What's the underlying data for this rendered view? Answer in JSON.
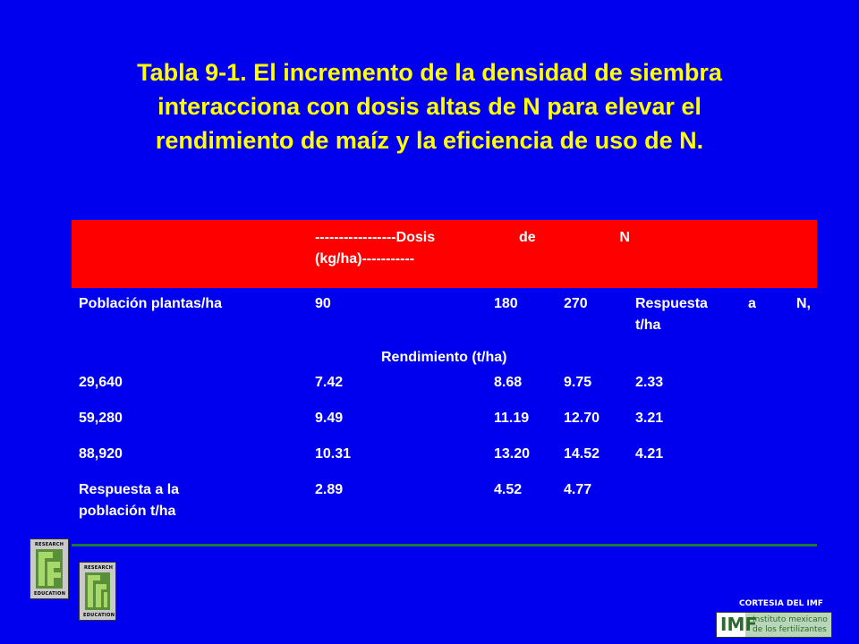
{
  "title": {
    "line1": "Tabla 9-1.  El incremento de la densidad de siembra",
    "line2": "interacciona con dosis altas de N para elevar el",
    "line3": "rendimiento de maíz y la eficiencia de uso de N."
  },
  "table": {
    "dosis_header": {
      "part1": "-----------------Dosis",
      "part2": "de",
      "part3": "N",
      "line2": "(kg/ha)-----------"
    },
    "columns": {
      "poblacion": "Población plantas/ha",
      "d90": "90",
      "d180": "180",
      "d270": "270",
      "respuesta_n": {
        "w1": "Respuesta",
        "w2": "a",
        "w3": "N,",
        "line2": "t/ha"
      }
    },
    "rendimiento_label": "Rendimiento (t/ha)",
    "rows": [
      {
        "poblacion": "29,640",
        "d90": "7.42",
        "d180": "8.68",
        "d270": "9.75",
        "respuesta": "2.33"
      },
      {
        "poblacion": "59,280",
        "d90": "9.49",
        "d180": "11.19",
        "d270": "12.70",
        "respuesta": "3.21"
      },
      {
        "poblacion": "88,920",
        "d90": "10.31",
        "d180": "13.20",
        "d270": "14.52",
        "respuesta": "4.21"
      }
    ],
    "last_row": {
      "label_line1": "Respuesta a la",
      "label_line2": "población t/ha",
      "d90": "2.89",
      "d180": "4.52",
      "d270": "4.77"
    }
  },
  "logos": {
    "ppic": {
      "top_text": "RESEARCH",
      "bottom_text": "EDUCATION"
    },
    "ppi": {
      "top_text": "RESEARCH",
      "bottom_text": "EDUCATION"
    }
  },
  "footer": {
    "cortesia": "CORTESIA DEL IMF",
    "imf_mark": "IMF",
    "imf_line1": "Instituto mexicano",
    "imf_line2": "de los fertilizantes"
  },
  "colors": {
    "background": "#0000ee",
    "title": "#ffff00",
    "header_band": "#ff0000",
    "rule": "#1f7a3a"
  }
}
